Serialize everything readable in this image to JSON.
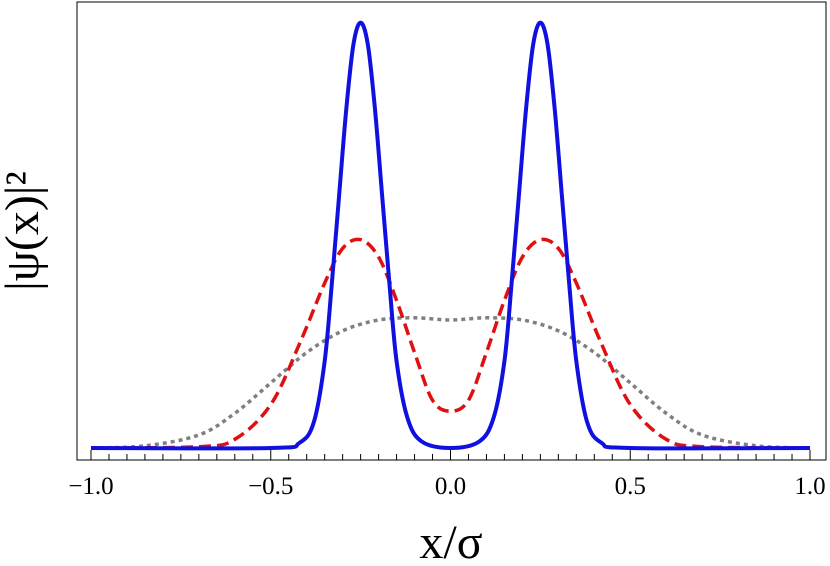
{
  "chart_data": {
    "type": "line",
    "xlabel": "x/σ",
    "ylabel": "|ψ(x)|²",
    "xlim": [
      -1.0,
      1.0
    ],
    "ylim": [
      0,
      1.0
    ],
    "x_ticks": [
      "−1.0",
      "−0.5",
      "0.0",
      "0.5",
      "1.0"
    ],
    "x_tick_values": [
      -1.0,
      -0.5,
      0.0,
      0.5,
      1.0
    ],
    "grid": false,
    "legend": "none",
    "series": [
      {
        "color": "#1010e0",
        "style": "solid",
        "points": [
          [
            -1.0,
            0
          ],
          [
            -0.5,
            0
          ],
          [
            -0.42,
            0.012
          ],
          [
            -0.38,
            0.06
          ],
          [
            -0.35,
            0.2
          ],
          [
            -0.33,
            0.38
          ],
          [
            -0.31,
            0.58
          ],
          [
            -0.29,
            0.78
          ],
          [
            -0.27,
            0.93
          ],
          [
            -0.25,
            0.98
          ],
          [
            -0.23,
            0.93
          ],
          [
            -0.21,
            0.78
          ],
          [
            -0.19,
            0.58
          ],
          [
            -0.17,
            0.38
          ],
          [
            -0.15,
            0.2
          ],
          [
            -0.12,
            0.07
          ],
          [
            -0.08,
            0.015
          ],
          [
            0.0,
            0.0
          ],
          [
            0.08,
            0.015
          ],
          [
            0.12,
            0.07
          ],
          [
            0.15,
            0.2
          ],
          [
            0.17,
            0.38
          ],
          [
            0.19,
            0.58
          ],
          [
            0.21,
            0.78
          ],
          [
            0.23,
            0.93
          ],
          [
            0.25,
            0.98
          ],
          [
            0.27,
            0.93
          ],
          [
            0.29,
            0.78
          ],
          [
            0.31,
            0.58
          ],
          [
            0.33,
            0.38
          ],
          [
            0.35,
            0.2
          ],
          [
            0.38,
            0.06
          ],
          [
            0.42,
            0.012
          ],
          [
            0.5,
            0
          ],
          [
            1.0,
            0
          ]
        ]
      },
      {
        "color": "#e01010",
        "style": "dashed",
        "points": [
          [
            -1.0,
            0
          ],
          [
            -0.7,
            0.003
          ],
          [
            -0.6,
            0.02
          ],
          [
            -0.5,
            0.1
          ],
          [
            -0.42,
            0.24
          ],
          [
            -0.35,
            0.38
          ],
          [
            -0.3,
            0.46
          ],
          [
            -0.25,
            0.48
          ],
          [
            -0.2,
            0.44
          ],
          [
            -0.15,
            0.34
          ],
          [
            -0.1,
            0.22
          ],
          [
            -0.05,
            0.11
          ],
          [
            0.0,
            0.085
          ],
          [
            0.05,
            0.11
          ],
          [
            0.1,
            0.22
          ],
          [
            0.15,
            0.34
          ],
          [
            0.2,
            0.44
          ],
          [
            0.25,
            0.48
          ],
          [
            0.3,
            0.46
          ],
          [
            0.35,
            0.38
          ],
          [
            0.42,
            0.24
          ],
          [
            0.5,
            0.1
          ],
          [
            0.6,
            0.02
          ],
          [
            0.7,
            0.003
          ],
          [
            1.0,
            0
          ]
        ]
      },
      {
        "color": "#808080",
        "style": "dotted",
        "points": [
          [
            -1.0,
            0
          ],
          [
            -0.85,
            0.005
          ],
          [
            -0.7,
            0.03
          ],
          [
            -0.6,
            0.08
          ],
          [
            -0.5,
            0.15
          ],
          [
            -0.4,
            0.22
          ],
          [
            -0.3,
            0.27
          ],
          [
            -0.2,
            0.295
          ],
          [
            -0.1,
            0.3
          ],
          [
            0.0,
            0.295
          ],
          [
            0.1,
            0.3
          ],
          [
            0.2,
            0.295
          ],
          [
            0.3,
            0.27
          ],
          [
            0.4,
            0.22
          ],
          [
            0.5,
            0.15
          ],
          [
            0.6,
            0.08
          ],
          [
            0.7,
            0.03
          ],
          [
            0.85,
            0.005
          ],
          [
            1.0,
            0
          ]
        ]
      }
    ]
  }
}
